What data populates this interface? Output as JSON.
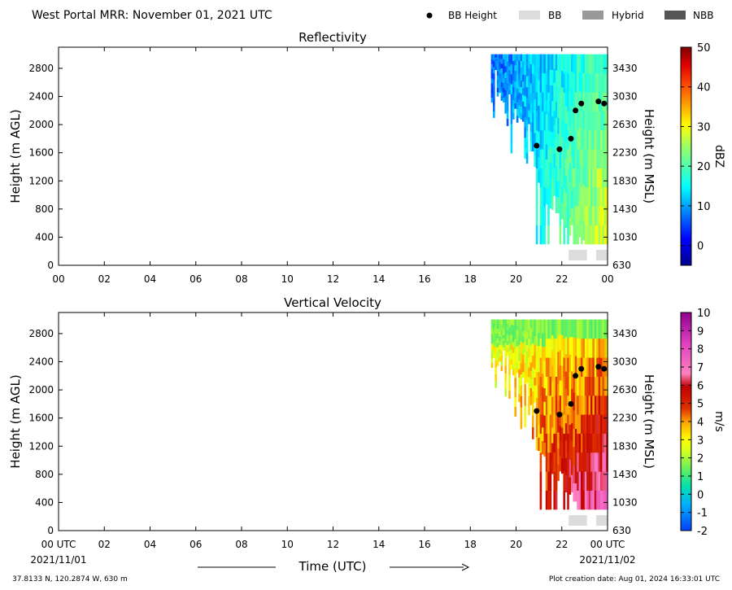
{
  "header": {
    "title": "West Portal MRR:  November 01, 2021 UTC",
    "legend": [
      {
        "label": "BB Height",
        "kind": "marker",
        "color": "#000000"
      },
      {
        "label": "BB",
        "kind": "swatch",
        "color": "#dcdcdc"
      },
      {
        "label": "Hybrid",
        "kind": "swatch",
        "color": "#999999"
      },
      {
        "label": "NBB",
        "kind": "swatch",
        "color": "#555555"
      }
    ]
  },
  "footer": {
    "location": "37.8133 N, 120.2874 W, 630 m",
    "creation": "Plot creation date: Aug 01, 2024 16:33:01 UTC",
    "xlabel": "Time (UTC)",
    "date_start": "2021/11/01",
    "date_end": "2021/11/02"
  },
  "chart_data": [
    {
      "type": "heatmap",
      "title": "Reflectivity",
      "xlabel": "",
      "ylabel": "Height (m AGL)",
      "ylabel_right": "Height (m MSL)",
      "xlim": [
        0,
        24
      ],
      "ylim": [
        0,
        3100
      ],
      "x_ticks": [
        "00",
        "02",
        "04",
        "06",
        "08",
        "10",
        "12",
        "14",
        "16",
        "18",
        "20",
        "22",
        "00"
      ],
      "y_ticks": [
        0,
        400,
        800,
        1200,
        1600,
        2000,
        2400,
        2800
      ],
      "y_ticks_right": [
        630,
        1030,
        1430,
        1830,
        2230,
        2630,
        3030,
        3430
      ],
      "colorbar": {
        "label": "dBZ",
        "min": -5,
        "max": 50,
        "ticks": [
          0,
          10,
          20,
          30,
          40,
          50
        ],
        "palette": "jet"
      },
      "bb_height": {
        "x": [
          20.9,
          21.9,
          22.4,
          22.6,
          22.85,
          23.6,
          23.85
        ],
        "y": [
          1700,
          1650,
          1800,
          2200,
          2300,
          2330,
          2300
        ]
      },
      "bb_flag": [
        {
          "x0": 22.3,
          "x1": 23.1,
          "type": "BB"
        },
        {
          "x0": 23.5,
          "x1": 24.0,
          "type": "BB"
        }
      ]
    },
    {
      "type": "heatmap",
      "title": "Vertical Velocity",
      "xlabel": "Time (UTC)",
      "ylabel": "Height (m AGL)",
      "ylabel_right": "Height (m MSL)",
      "xlim": [
        0,
        24
      ],
      "ylim": [
        0,
        3100
      ],
      "x_ticks": [
        "00 UTC",
        "02",
        "04",
        "06",
        "08",
        "10",
        "12",
        "14",
        "16",
        "18",
        "20",
        "22",
        "00 UTC"
      ],
      "y_ticks": [
        0,
        400,
        800,
        1200,
        1600,
        2000,
        2400,
        2800
      ],
      "y_ticks_right": [
        630,
        1030,
        1430,
        1830,
        2230,
        2630,
        3030,
        3430
      ],
      "colorbar": {
        "label": "m/s",
        "min": -2,
        "max": 10,
        "ticks": [
          -2,
          -1,
          0,
          1,
          2,
          3,
          4,
          5,
          6,
          7,
          8,
          9,
          10
        ],
        "palette": "velocity"
      },
      "bb_height": {
        "x": [
          20.9,
          21.9,
          22.4,
          22.6,
          22.85,
          23.6,
          23.85
        ],
        "y": [
          1700,
          1650,
          1800,
          2200,
          2300,
          2330,
          2300
        ]
      },
      "bb_flag": [
        {
          "x0": 22.3,
          "x1": 23.1,
          "type": "BB"
        },
        {
          "x0": 23.5,
          "x1": 24.0,
          "type": "BB"
        }
      ]
    }
  ]
}
